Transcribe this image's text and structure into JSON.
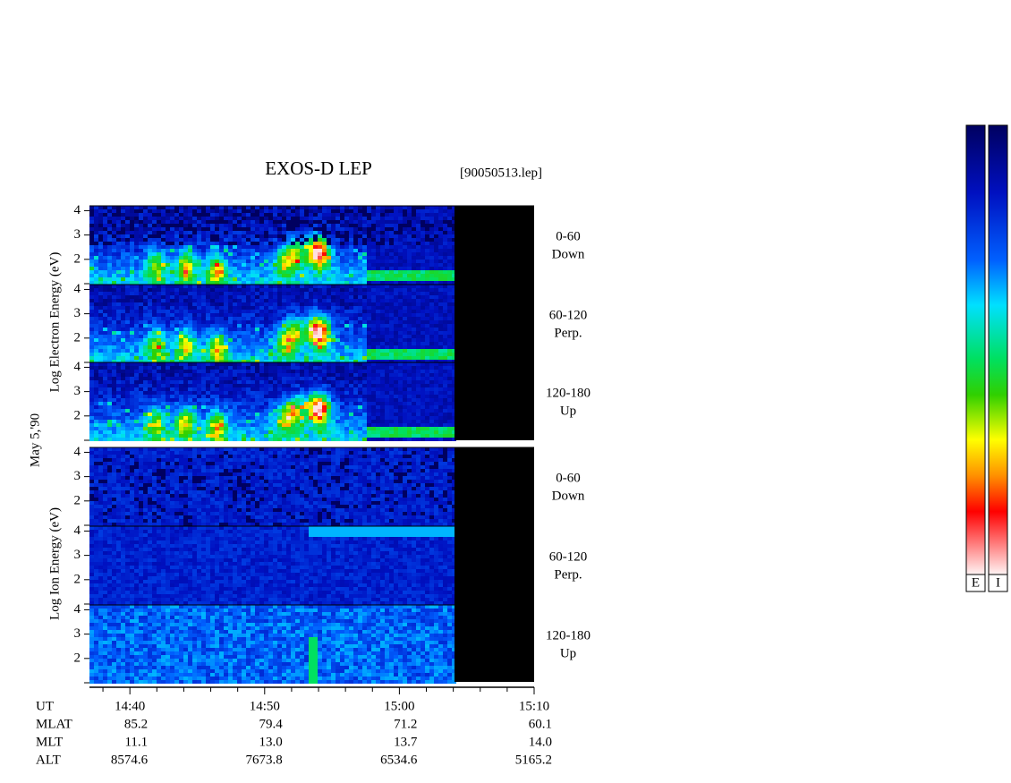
{
  "title": "EXOS-D LEP",
  "file": "[90050513.lep]",
  "date": "May 5,'90",
  "electron_label": "Log Electron Energy (eV)",
  "ion_label": "Log Ion Energy (eV)",
  "ylim": [
    1,
    4.2
  ],
  "yticks": [
    2,
    3,
    4
  ],
  "panels": [
    {
      "species": "electron",
      "angle": "0-60",
      "direction": "Down"
    },
    {
      "species": "electron",
      "angle": "60-120",
      "direction": "Perp."
    },
    {
      "species": "electron",
      "angle": "120-180",
      "direction": "Up"
    },
    {
      "species": "ion",
      "angle": "0-60",
      "direction": "Down"
    },
    {
      "species": "ion",
      "angle": "60-120",
      "direction": "Perp."
    },
    {
      "species": "ion",
      "angle": "120-180",
      "direction": "Up"
    }
  ],
  "xlim": [
    37,
    70
  ],
  "xticks": [
    {
      "value": 40,
      "label": "14:40"
    },
    {
      "value": 50,
      "label": "14:50"
    },
    {
      "value": 60,
      "label": "15:00"
    },
    {
      "value": 70,
      "label": "15:10"
    }
  ],
  "xminorticks": [
    38,
    42,
    44,
    46,
    48,
    52,
    54,
    56,
    58,
    62,
    64,
    66,
    68
  ],
  "ut_label": "UT",
  "ephemeris": [
    {
      "label": "MLAT",
      "values": [
        "85.2",
        "79.4",
        "71.2",
        "60.1"
      ]
    },
    {
      "label": "MLT",
      "values": [
        "11.1",
        "13.0",
        "13.7",
        "14.0"
      ]
    },
    {
      "label": "ALT",
      "values": [
        "8574.6",
        "7673.8",
        "6534.6",
        "5165.2"
      ]
    }
  ],
  "colorbars": [
    "E",
    "I"
  ]
}
